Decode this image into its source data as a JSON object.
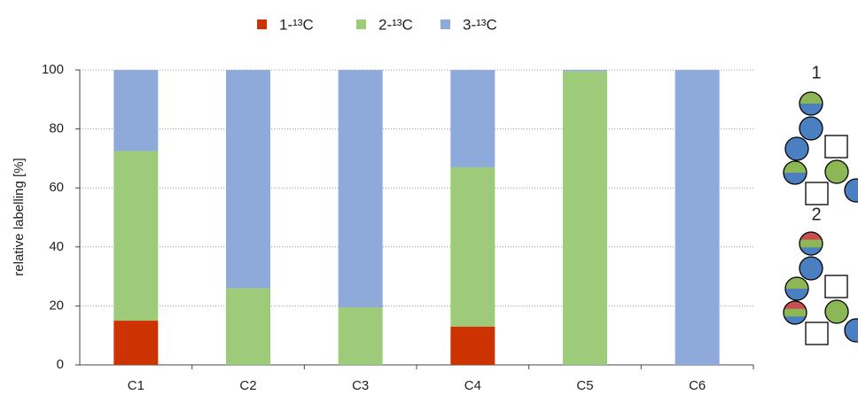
{
  "chart_data": {
    "type": "stacked_bar",
    "categories": [
      "C1",
      "C2",
      "C3",
      "C4",
      "C5",
      "C6"
    ],
    "series": [
      {
        "name": "1-¹³C",
        "color": "#cc3300",
        "values": [
          15,
          0,
          0,
          13,
          0,
          0
        ]
      },
      {
        "name": "2-¹³C",
        "color": "#9dcb7a",
        "values": [
          57.5,
          26,
          19.5,
          54,
          99.5,
          0
        ]
      },
      {
        "name": "3-¹³C",
        "color": "#8eaadb",
        "values": [
          27.5,
          74,
          80.5,
          33,
          0.5,
          100
        ]
      }
    ],
    "y_label": "relative labelling [%]",
    "ylim": [
      0,
      100
    ],
    "yticks": [
      0,
      20,
      40,
      60,
      80,
      100
    ],
    "grid": true,
    "annotations": [
      "1",
      "2"
    ]
  }
}
